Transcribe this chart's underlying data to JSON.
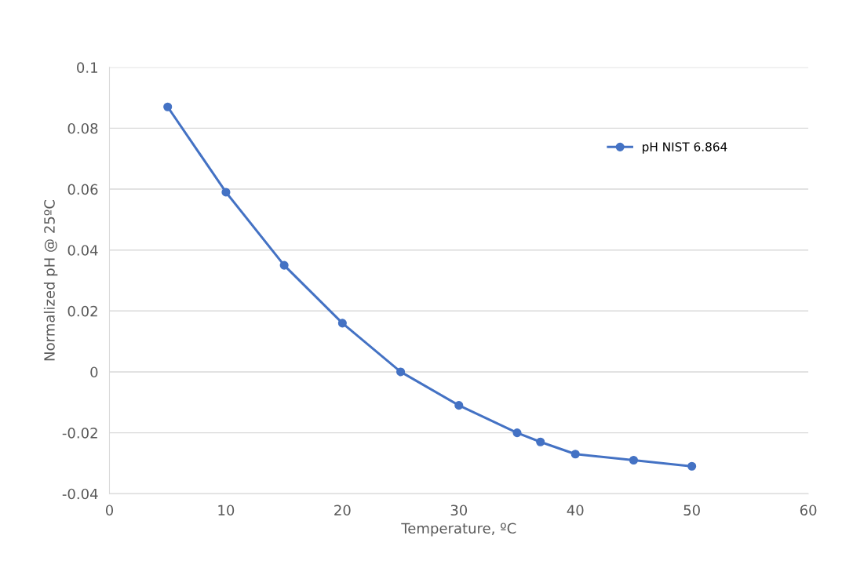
{
  "chart_data": {
    "type": "line",
    "xlabel": "Temperature, ºC",
    "ylabel": "Normalized pH @ 25ºC",
    "x": [
      5,
      10,
      15,
      20,
      25,
      30,
      35,
      37,
      40,
      45,
      50
    ],
    "series": [
      {
        "name": "pH NIST 6.864",
        "color": "#4472c4",
        "values": [
          0.087,
          0.059,
          0.035,
          0.016,
          0,
          -0.011,
          -0.02,
          -0.023,
          -0.027,
          -0.029,
          -0.031
        ]
      }
    ],
    "xlim": [
      0,
      60
    ],
    "xticks": [
      0,
      10,
      20,
      30,
      40,
      50,
      60
    ],
    "ylim": [
      -0.04,
      0.1
    ],
    "yticks": [
      -0.04,
      -0.02,
      0,
      0.02,
      0.04,
      0.06,
      0.08,
      0.1
    ],
    "grid": "y",
    "legend": "top right",
    "marker": "circle",
    "line_style": "solid"
  }
}
